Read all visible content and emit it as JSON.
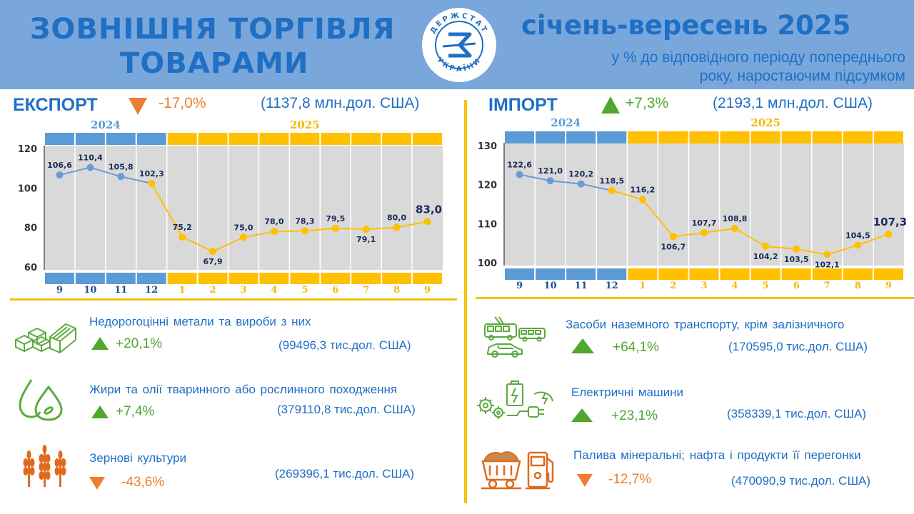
{
  "header": {
    "title_line1": "ЗОВНІШНЯ ТОРГІВЛЯ",
    "title_line2": "ТОВАРАМИ",
    "logo_text": "ДЕРЖСТАТ УКРАЇНИ",
    "period": "січень-вересень 2025",
    "subtitle_line1": "у % до відповідного періоду попереднього",
    "subtitle_line2": "року, наростаючим підсумком"
  },
  "colors": {
    "blue": "#1f6fc4",
    "header_bg": "#79a7db",
    "yellow": "#f5c20a",
    "orange": "#ed7d31",
    "green": "#4ea72e",
    "line_2024": "#6a9bd8"
  },
  "export": {
    "title": "ЕКСПОРТ",
    "change": "-17,0%",
    "change_dir": "down",
    "total": "(1137,8 млн.дол. США)"
  },
  "import": {
    "title": "ІМПОРТ",
    "change": "+7,3%",
    "change_dir": "up",
    "total": "(2193,1 млн.дол. США)"
  },
  "chart_data": [
    {
      "type": "line",
      "name": "export",
      "year_labels": [
        "2024",
        "2025"
      ],
      "categories": [
        "9",
        "10",
        "11",
        "12",
        "1",
        "2",
        "3",
        "4",
        "5",
        "6",
        "7",
        "8",
        "9"
      ],
      "values": [
        106.6,
        110.4,
        105.8,
        102.3,
        75.2,
        67.9,
        75.0,
        78.0,
        78.3,
        79.5,
        79.1,
        80.0,
        83.0
      ],
      "labels": [
        "106,6",
        "110,4",
        "105,8",
        "102,3",
        "75,2",
        "67,9",
        "75,0",
        "78,0",
        "78,3",
        "79,5",
        "79,1",
        "80,0",
        "83,0"
      ],
      "split_index": 4,
      "ylim": [
        60,
        120
      ],
      "yticks": [
        60,
        80,
        100,
        120
      ],
      "grid": false
    },
    {
      "type": "line",
      "name": "import",
      "year_labels": [
        "2024",
        "2025"
      ],
      "categories": [
        "9",
        "10",
        "11",
        "12",
        "1",
        "2",
        "3",
        "4",
        "5",
        "6",
        "7",
        "8",
        "9"
      ],
      "values": [
        122.6,
        121.0,
        120.2,
        118.5,
        116.2,
        106.7,
        107.7,
        108.8,
        104.2,
        103.5,
        102.1,
        104.5,
        107.3
      ],
      "labels": [
        "122,6",
        "121,0",
        "120,2",
        "118,5",
        "116,2",
        "106,7",
        "107,7",
        "108,8",
        "104,2",
        "103,5",
        "102,1",
        "104,5",
        "107,3"
      ],
      "split_index": 4,
      "ylim": [
        100,
        130
      ],
      "yticks": [
        100,
        110,
        120,
        130
      ],
      "grid": false
    }
  ],
  "export_goods": [
    {
      "name": "Недорогоцінні метали та вироби з них",
      "change": "+20,1%",
      "dir": "up",
      "value": "(99496,3 тис.дол. США)",
      "icon": "metal-bars-icon"
    },
    {
      "name": "Жири та олії тваринного або рослинного походження",
      "change": "+7,4%",
      "dir": "up",
      "value": "(379110,8 тис.дол. США)",
      "icon": "oil-drops-icon"
    },
    {
      "name": "Зернові культури",
      "change": "-43,6%",
      "dir": "down",
      "value": "(269396,1 тис.дол. США)",
      "icon": "wheat-icon"
    }
  ],
  "import_goods": [
    {
      "name": "Засоби наземного транспорту, крім залізничного",
      "change": "+64,1%",
      "dir": "up",
      "value": "(170595,0 тис.дол. США)",
      "icon": "transport-icon"
    },
    {
      "name": "Електричні машини",
      "change": "+23,1%",
      "dir": "up",
      "value": "(358339,1 тис.дол. США)",
      "icon": "electric-machines-icon"
    },
    {
      "name": "Палива мінеральні; нафта і продукти її перегонки",
      "change": "-12,7%",
      "dir": "down",
      "value": "(470090,9 тис.дол. США)",
      "icon": "fuel-icon"
    }
  ]
}
